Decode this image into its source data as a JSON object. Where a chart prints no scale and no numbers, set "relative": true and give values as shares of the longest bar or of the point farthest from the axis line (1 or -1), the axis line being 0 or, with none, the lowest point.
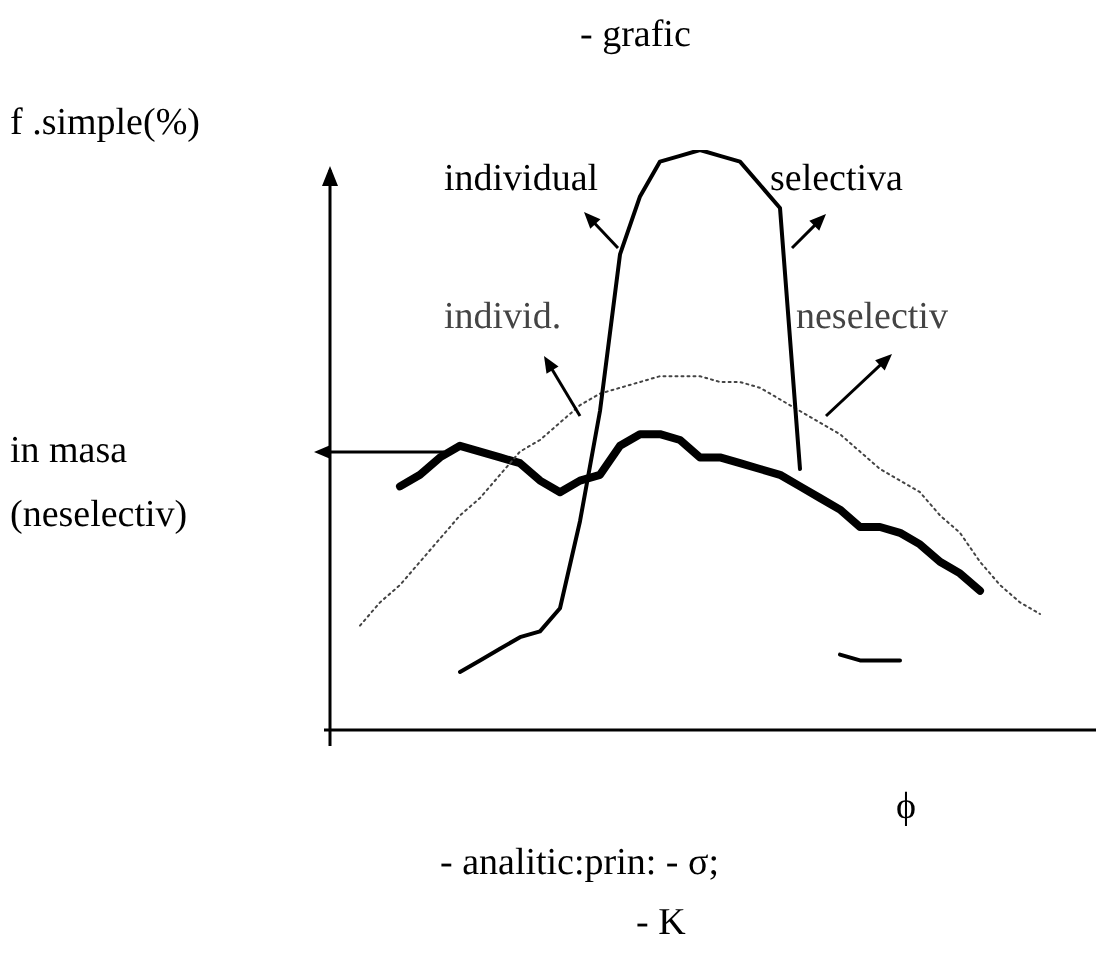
{
  "chart_data": {
    "type": "line",
    "title": "- grafic",
    "xlabel": "ϕ",
    "ylabel": "f .simple(%)",
    "relative": true,
    "marker": "none",
    "annotations": [
      "in masa (neselectiv)",
      "- analitic:prin: - σ;",
      "- K"
    ],
    "categories": [
      null,
      null,
      null,
      null,
      null,
      null,
      null,
      null,
      null,
      null,
      null,
      null,
      null,
      null,
      null,
      null,
      null,
      null,
      null,
      null,
      null,
      null,
      null,
      null,
      null,
      null,
      null,
      null,
      null,
      null,
      null,
      null,
      null,
      null,
      null
    ],
    "series": [
      {
        "name": "individual selectiva",
        "color": "#000000",
        "line_style": "solid",
        "values": [
          null,
          null,
          null,
          null,
          null,
          0.1,
          0.12,
          0.14,
          0.16,
          0.17,
          0.21,
          0.36,
          0.55,
          0.82,
          0.92,
          0.98,
          0.99,
          1,
          0.99,
          0.98,
          0.94,
          0.9,
          0.45,
          null,
          0.13,
          0.12,
          0.12,
          0.12,
          null,
          null,
          null,
          null,
          null,
          null,
          null
        ]
      },
      {
        "name": "individ. neselectiv",
        "color": "#444444",
        "line_style": "dotted",
        "values": [
          0.18,
          0.22,
          0.25,
          0.29,
          0.33,
          0.37,
          0.4,
          0.44,
          0.48,
          0.5,
          0.53,
          0.56,
          0.58,
          0.59,
          0.6,
          0.61,
          0.61,
          0.61,
          0.6,
          0.6,
          0.59,
          0.57,
          0.55,
          0.53,
          0.51,
          0.48,
          0.45,
          0.43,
          0.41,
          0.37,
          0.34,
          0.29,
          0.25,
          0.22,
          0.2
        ]
      },
      {
        "color": "#000000",
        "line_style": "solid",
        "values": [
          null,
          null,
          0.42,
          0.44,
          0.47,
          0.49,
          0.48,
          0.47,
          0.46,
          0.43,
          0.41,
          0.43,
          0.44,
          0.49,
          0.51,
          0.51,
          0.5,
          0.47,
          0.47,
          0.46,
          0.45,
          0.44,
          0.42,
          0.4,
          0.38,
          0.35,
          0.35,
          0.34,
          0.32,
          0.29,
          0.27,
          0.24,
          null,
          null,
          null
        ]
      }
    ]
  }
}
